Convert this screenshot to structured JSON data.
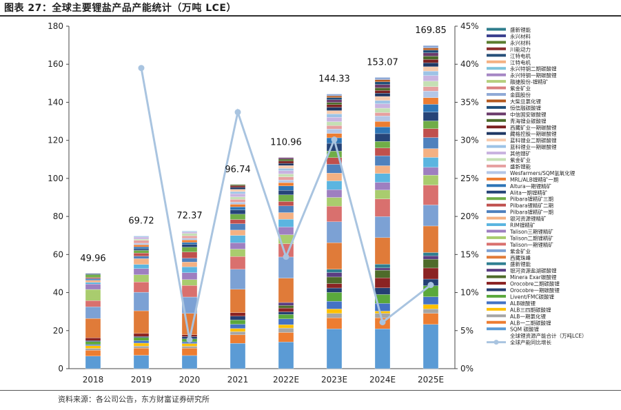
{
  "figure_title": "图表 27：全球主要锂盐产品产能统计（万吨 LCE）",
  "source": "资料来源：各公司公告，东方财富证券研究所",
  "chart_data": {
    "type": "bar",
    "stacked": true,
    "categories": [
      "2018",
      "2019",
      "2020",
      "2021",
      "2022E",
      "2023E",
      "2024E",
      "2025E"
    ],
    "totals": [
      49.96,
      69.72,
      72.37,
      96.74,
      110.96,
      144.33,
      153.07,
      169.85
    ],
    "total_series_name": "全球锂资源产能合计（万吨LCE）",
    "left_axis": {
      "ylim": [
        0,
        180
      ],
      "ticks": [
        0,
        20,
        40,
        60,
        80,
        100,
        120,
        140,
        160,
        180
      ]
    },
    "right_axis": {
      "ylim": [
        0,
        45
      ],
      "ticks": [
        "0%",
        "5%",
        "10%",
        "15%",
        "20%",
        "25%",
        "30%",
        "35%",
        "40%",
        "45%"
      ]
    },
    "growth_series": {
      "name": "全球产能同比增长",
      "color": "#a9c4e0",
      "values": [
        null,
        39.5,
        3.8,
        33.7,
        14.7,
        30.1,
        6.1,
        11.0
      ]
    },
    "legend_position": "right",
    "legend": [
      {
        "name": "盛新锂能",
        "color": "#2e7d8c"
      },
      {
        "name": "永兴材料",
        "color": "#3b3f8f"
      },
      {
        "name": "永兴材料",
        "color": "#5a7d2e"
      },
      {
        "name": "川能动力",
        "color": "#8b2e2e"
      },
      {
        "name": "江特电机",
        "color": "#27507a"
      },
      {
        "name": "江特电机",
        "color": "#f4b183"
      },
      {
        "name": "永兴特钢二期碳酸锂",
        "color": "#7fc4dc"
      },
      {
        "name": "永兴特钢一期碳酸锂",
        "color": "#a586c4"
      },
      {
        "name": "融捷股份-锂精矿",
        "color": "#b5cf7e"
      },
      {
        "name": "紫金矿业",
        "color": "#d97f7f"
      },
      {
        "name": "金圆股份",
        "color": "#8fa9d6"
      },
      {
        "name": "大柴旦氯化锂",
        "color": "#b4591f"
      },
      {
        "name": "恒信融碳酸锂",
        "color": "#1f4e79"
      },
      {
        "name": "中信国安碳酸锂",
        "color": "#6b3a6b"
      },
      {
        "name": "青海锂业碳酸锂",
        "color": "#4b6b2a"
      },
      {
        "name": "西藏矿业一期碳酸锂",
        "color": "#7b1f1f"
      },
      {
        "name": "藏格控股一期碳酸锂",
        "color": "#1f3864"
      },
      {
        "name": "蓝科锂业二期碳酸锂",
        "color": "#f8cbad"
      },
      {
        "name": "蓝科锂业一期碳酸锂",
        "color": "#9dc3e6"
      },
      {
        "name": "其他锂矿",
        "color": "#c9b3e0"
      },
      {
        "name": "紫金矿业",
        "color": "#c5e0b4"
      },
      {
        "name": "盛新锂能",
        "color": "#e6a0a0"
      },
      {
        "name": "Wesfarmers/SQM氢氧化锂",
        "color": "#b4c7e7"
      },
      {
        "name": "MRL/ALB锂精矿一期",
        "color": "#ed7d31"
      },
      {
        "name": "Altura一期锂精矿",
        "color": "#2e75b6"
      },
      {
        "name": "Alita一期锂精矿",
        "color": "#264478"
      },
      {
        "name": "Pilbara锂精矿三期",
        "color": "#70ad47"
      },
      {
        "name": "Pilbara锂精矿二期",
        "color": "#c0504d"
      },
      {
        "name": "Pilbara锂精矿一期",
        "color": "#4f81bd"
      },
      {
        "name": "银河资源锂精矿",
        "color": "#f4b183"
      },
      {
        "name": "RIM锂精矿",
        "color": "#5bb5e0"
      },
      {
        "name": "Talison三期锂精矿",
        "color": "#9e7fc0"
      },
      {
        "name": "Talison二期锂精矿",
        "color": "#a9cc6e"
      },
      {
        "name": "Talison一期锂精矿",
        "color": "#d9706e"
      },
      {
        "name": "紫金矿业",
        "color": "#7ca1d4"
      },
      {
        "name": "西藏珠峰",
        "color": "#e07b39"
      },
      {
        "name": "盛新锂能",
        "color": "#2f7f91"
      },
      {
        "name": "银河资源盐湖碳酸锂",
        "color": "#5b3d82"
      },
      {
        "name": "Minera Exar碳酸锂",
        "color": "#4e6b2a"
      },
      {
        "name": "Orocobre二期碳酸锂",
        "color": "#8b2323"
      },
      {
        "name": "Orocobre一期碳酸锂",
        "color": "#243f73"
      },
      {
        "name": "Livent/FMC碳酸锂",
        "color": "#5aa83c"
      },
      {
        "name": "ALB碳酸锂",
        "color": "#4472c4"
      },
      {
        "name": "ALB三四期碳酸锂",
        "color": "#ffc000"
      },
      {
        "name": "ALB一期氯化锂",
        "color": "#a5a5a5"
      },
      {
        "name": "ALB一二期碳酸锂",
        "color": "#ed7d31"
      },
      {
        "name": "SQM 碳酸锂",
        "color": "#5b9bd5"
      }
    ],
    "segments": [
      [
        6.5,
        3.0,
        1.0,
        1.4,
        0.6,
        1.5,
        0.5,
        1.5,
        0,
        0,
        0,
        10,
        6.0,
        3.2,
        5.8,
        2.8,
        0.9,
        1.0,
        0.9,
        0.6,
        1.5,
        0.5
      ],
      [
        6.5,
        3.5,
        1.0,
        1.4,
        1.2,
        1.5,
        0.5,
        1.5,
        0,
        0,
        0,
        11,
        9.0,
        5.0,
        3.5,
        3.0,
        2.0,
        2.8,
        1.2,
        1.5,
        1.3,
        0.8,
        0.9,
        1.0,
        0.8,
        1.4,
        0.6,
        1.0,
        0.5
      ],
      [
        6.8,
        3.8,
        1.0,
        1.4,
        0.9,
        1.5,
        1.2,
        1.0,
        0,
        0,
        0,
        11,
        8.5,
        6.0,
        3.0,
        3.6,
        3.0,
        2.5,
        2.0,
        3.2,
        2.5,
        1.5,
        1.0,
        1.2,
        0.9,
        1.3,
        1.2,
        0.8,
        0.5
      ],
      [
        12.0,
        4.0,
        1.5,
        1.5,
        2.0,
        2.0,
        1.8,
        1.7,
        0,
        0,
        0,
        11,
        9.5,
        6.0,
        3.5,
        3.0,
        3.5,
        2.5,
        3.0,
        2.0,
        2.5,
        2.0,
        1.5,
        1.2,
        1.0,
        1.3,
        1.2,
        1.5,
        1.0,
        1.1,
        0.9,
        0.8,
        0.5
      ],
      [
        12.0,
        4.3,
        2.0,
        1.5,
        2.6,
        2.0,
        1.2,
        1.7,
        1.2,
        1.3,
        0,
        11,
        9.5,
        6.0,
        4.0,
        3.5,
        3.5,
        3.0,
        3.0,
        2.0,
        3.0,
        2.0,
        2.0,
        1.5,
        1.2,
        1.4,
        1.3,
        1.5,
        1.0,
        1.3,
        1.0,
        1.0,
        0.9,
        0.7
      ],
      [
        18.0,
        5.0,
        2.0,
        2.0,
        3.5,
        4.0,
        2.0,
        2.0,
        3.0,
        2.0,
        1.5,
        12,
        9.5,
        7.0,
        4.0,
        3.5,
        4.0,
        3.5,
        4.0,
        3.0,
        3.0,
        3.5,
        2.5,
        2.0,
        2.0,
        1.5,
        1.8,
        2.0,
        1.5,
        1.5,
        1.5,
        1.2,
        1.0,
        1.2,
        1.0,
        0.8,
        0.8
      ],
      [
        18.0,
        5.0,
        2.0,
        1.0,
        3.5,
        4.0,
        3.0,
        4.5,
        3.5,
        1.0,
        1.7,
        12,
        9.5,
        8.0,
        4.0,
        3.5,
        4.0,
        3.5,
        4.5,
        3.5,
        3.0,
        3.5,
        3.0,
        2.5,
        2.5,
        1.5,
        2.0,
        2.0,
        1.5,
        1.8,
        1.5,
        1.2,
        1.2,
        1.5,
        1.2,
        1.0,
        1.0
      ],
      [
        20.0,
        5.0,
        2.0,
        2.0,
        3.5,
        5.0,
        3.0,
        5.0,
        4.0,
        1.5,
        1.5,
        12,
        9.5,
        9.0,
        4.5,
        3.5,
        4.5,
        4.0,
        5.0,
        4.0,
        3.5,
        4.0,
        3.5,
        3.0,
        3.0,
        2.0,
        2.5,
        2.5,
        2.0,
        2.0,
        1.8,
        1.5,
        1.5,
        1.5,
        1.2,
        1.0,
        1.1
      ]
    ]
  }
}
